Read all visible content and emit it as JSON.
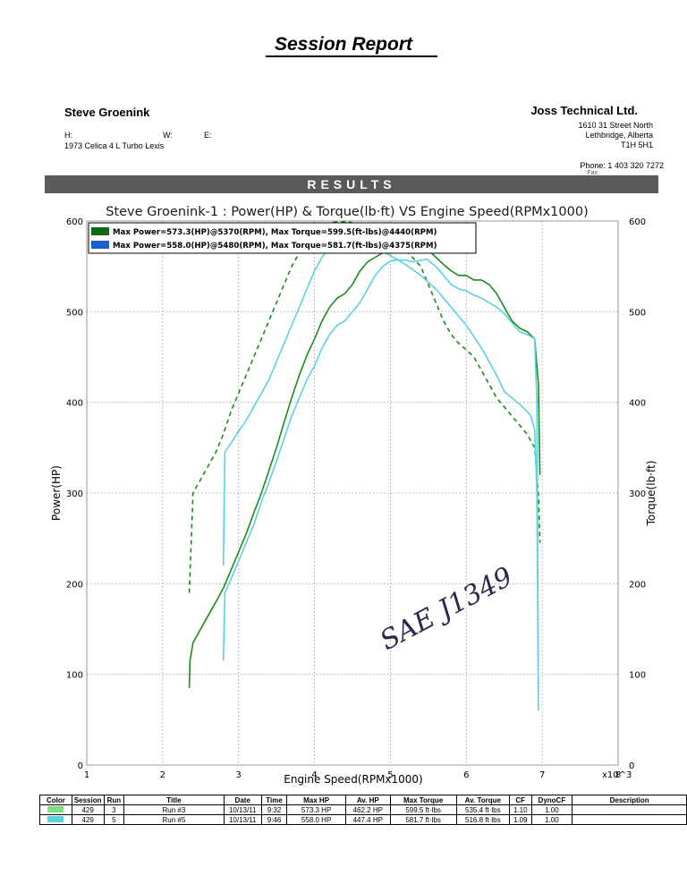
{
  "report": {
    "title": "Session Report",
    "customer": {
      "name": "Steve Groenink",
      "h": "H:",
      "w": "W:",
      "e": "E:",
      "vehicle": "1973 Celica 4 L Turbo Lexis"
    },
    "company": {
      "name": "Joss Technical Ltd.",
      "address": [
        "1610 31 Street North",
        "Lethbridge, Alberta",
        "T1H 5H1"
      ],
      "phone": "Phone: 1 403 320 7272",
      "fax": "Fax:"
    },
    "results_header": "RESULTS",
    "handwritten_note": "SAE J1349"
  },
  "chart_data": {
    "type": "line",
    "title": "Steve Groenink-1 : Power(HP) & Torque(lb·ft) VS Engine Speed(RPMx1000)",
    "xlabel": "Engine Speed(RPMx1000)",
    "ylabel_left": "Power(HP)",
    "ylabel_right": "Torque(lb·ft)",
    "x_multiplier": "x10^3",
    "xlim": [
      1,
      8
    ],
    "ylim": [
      0,
      600
    ],
    "x_ticks": [
      "1",
      "2",
      "3",
      "4",
      "5",
      "6",
      "7",
      "8"
    ],
    "y_ticks_left": [
      "0",
      "100",
      "200",
      "300",
      "400",
      "500",
      "600"
    ],
    "y_ticks_right": [
      "0",
      "100",
      "200",
      "300",
      "400",
      "500",
      "600"
    ],
    "grid": true,
    "legend_position": "top-left",
    "legend": [
      "Max Power=573.3(HP)@5370(RPM), Max Torque=599.5(ft-lbs)@4440(RPM)",
      "Max Power=558.0(HP)@5480(RPM), Max Torque=581.7(ft-lbs)@4375(RPM)"
    ],
    "series": [
      {
        "kind": "power",
        "run": "Run #3",
        "color": "#1a8c1a",
        "dash": false,
        "x": [
          2.35,
          2.36,
          2.4,
          2.5,
          2.6,
          2.7,
          2.8,
          2.9,
          3.0,
          3.1,
          3.2,
          3.3,
          3.4,
          3.5,
          3.6,
          3.7,
          3.8,
          3.9,
          4.0,
          4.1,
          4.2,
          4.3,
          4.4,
          4.5,
          4.6,
          4.7,
          4.8,
          4.9,
          5.0,
          5.1,
          5.2,
          5.3,
          5.37,
          5.5,
          5.6,
          5.7,
          5.8,
          5.9,
          6.0,
          6.1,
          6.2,
          6.3,
          6.4,
          6.5,
          6.6,
          6.7,
          6.8,
          6.9,
          6.95,
          6.97
        ],
        "y": [
          85,
          115,
          135,
          150,
          165,
          180,
          195,
          215,
          235,
          255,
          278,
          300,
          325,
          350,
          378,
          405,
          430,
          452,
          470,
          490,
          505,
          515,
          520,
          530,
          545,
          555,
          560,
          565,
          570,
          572,
          573,
          573,
          573.3,
          568,
          560,
          552,
          545,
          540,
          540,
          535,
          535,
          530,
          520,
          505,
          490,
          482,
          478,
          470,
          420,
          320
        ]
      },
      {
        "kind": "torque",
        "run": "Run #3",
        "color": "#1a8c1a",
        "dash": true,
        "x": [
          2.35,
          2.4,
          2.5,
          2.6,
          2.7,
          2.8,
          2.9,
          3.0,
          3.1,
          3.2,
          3.3,
          3.4,
          3.5,
          3.6,
          3.7,
          3.8,
          3.9,
          4.0,
          4.1,
          4.2,
          4.3,
          4.44,
          4.6,
          4.8,
          5.0,
          5.2,
          5.4,
          5.5,
          5.6,
          5.7,
          5.8,
          5.9,
          6.0,
          6.1,
          6.2,
          6.3,
          6.4,
          6.5,
          6.6,
          6.7,
          6.8,
          6.9,
          6.95,
          6.97
        ],
        "y": [
          190,
          300,
          315,
          330,
          345,
          365,
          390,
          410,
          430,
          450,
          470,
          490,
          510,
          530,
          550,
          565,
          580,
          590,
          595,
          598,
          599,
          599.5,
          595,
          588,
          580,
          568,
          550,
          530,
          510,
          490,
          475,
          465,
          458,
          450,
          435,
          420,
          405,
          395,
          385,
          375,
          365,
          350,
          300,
          245
        ]
      },
      {
        "kind": "power",
        "run": "Run #5",
        "color": "#5ad2e0",
        "dash": false,
        "x": [
          2.8,
          2.82,
          2.9,
          3.0,
          3.1,
          3.2,
          3.3,
          3.4,
          3.5,
          3.6,
          3.7,
          3.8,
          3.9,
          4.0,
          4.1,
          4.2,
          4.3,
          4.4,
          4.5,
          4.6,
          4.7,
          4.8,
          4.9,
          5.0,
          5.1,
          5.2,
          5.3,
          5.48,
          5.6,
          5.7,
          5.8,
          5.9,
          6.0,
          6.1,
          6.2,
          6.3,
          6.4,
          6.5,
          6.6,
          6.7,
          6.8,
          6.9,
          6.93,
          6.95
        ],
        "y": [
          115,
          190,
          205,
          225,
          245,
          265,
          290,
          312,
          335,
          360,
          385,
          405,
          425,
          440,
          460,
          475,
          485,
          490,
          500,
          510,
          525,
          540,
          550,
          556,
          557,
          557,
          555,
          558,
          550,
          540,
          530,
          525,
          523,
          518,
          515,
          510,
          505,
          498,
          488,
          478,
          475,
          470,
          400,
          80
        ]
      },
      {
        "kind": "torque",
        "run": "Run #5",
        "color": "#5ad2e0",
        "dash": false,
        "x": [
          2.8,
          2.82,
          2.9,
          3.0,
          3.1,
          3.2,
          3.3,
          3.4,
          3.5,
          3.6,
          3.7,
          3.8,
          3.9,
          4.0,
          4.1,
          4.2,
          4.375,
          4.5,
          4.6,
          4.8,
          5.0,
          5.2,
          5.4,
          5.6,
          5.8,
          6.0,
          6.2,
          6.4,
          6.5,
          6.6,
          6.7,
          6.8,
          6.85,
          6.9,
          6.93,
          6.95
        ],
        "y": [
          220,
          345,
          355,
          368,
          380,
          395,
          410,
          425,
          445,
          465,
          485,
          505,
          525,
          545,
          560,
          572,
          581.7,
          580,
          578,
          570,
          562,
          552,
          540,
          525,
          505,
          485,
          460,
          430,
          412,
          405,
          398,
          390,
          385,
          370,
          300,
          60
        ]
      }
    ]
  },
  "results_table": {
    "headers": [
      "Color",
      "Session",
      "Run",
      "Title",
      "Date",
      "Time",
      "Max HP",
      "Av. HP",
      "Max Torque",
      "Av. Torque",
      "CF",
      "DynoCF",
      "Description"
    ],
    "rows": [
      {
        "color": "#7ee07e",
        "session": "429",
        "run": "3",
        "title": "Run #3",
        "date": "10/13/11",
        "time": "9:32",
        "max_hp": "573.3 HP",
        "av_hp": "462.2 HP",
        "max_torque": "599.5 ft·lbs",
        "av_torque": "535.4 ft·lbs",
        "cf": "1.10",
        "dynocf": "1.00",
        "description": ""
      },
      {
        "color": "#5ad2e0",
        "session": "429",
        "run": "5",
        "title": "Run #5",
        "date": "10/13/11",
        "time": "9:46",
        "max_hp": "558.0 HP",
        "av_hp": "447.4 HP",
        "max_torque": "581.7 ft·lbs",
        "av_torque": "516.8 ft·lbs",
        "cf": "1.09",
        "dynocf": "1.00",
        "description": ""
      }
    ]
  }
}
